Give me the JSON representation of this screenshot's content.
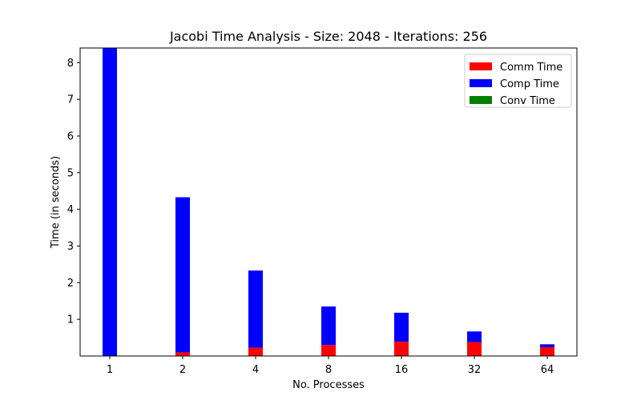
{
  "chart_data": {
    "type": "bar",
    "stacked": true,
    "title": "Jacobi Time Analysis - Size: 2048 - Iterations: 256",
    "xlabel": "No. Processes",
    "ylabel": "Time (in seconds)",
    "categories": [
      "1",
      "2",
      "4",
      "8",
      "16",
      "32",
      "64"
    ],
    "ylim": [
      0,
      8.4
    ],
    "yticks": [
      1,
      2,
      3,
      4,
      5,
      6,
      7,
      8
    ],
    "legend_position": "top-right",
    "series": [
      {
        "name": "Comm Time",
        "color": "#ff0000",
        "values": [
          0.0,
          0.1,
          0.23,
          0.3,
          0.39,
          0.38,
          0.24
        ]
      },
      {
        "name": "Comp Time",
        "color": "#0000ff",
        "values": [
          8.4,
          4.23,
          2.1,
          1.05,
          0.79,
          0.29,
          0.08
        ]
      },
      {
        "name": "Conv Time",
        "color": "#008000",
        "values": [
          0.0,
          0.0,
          0.0,
          0.0,
          0.0,
          0.0,
          0.0
        ]
      }
    ]
  }
}
